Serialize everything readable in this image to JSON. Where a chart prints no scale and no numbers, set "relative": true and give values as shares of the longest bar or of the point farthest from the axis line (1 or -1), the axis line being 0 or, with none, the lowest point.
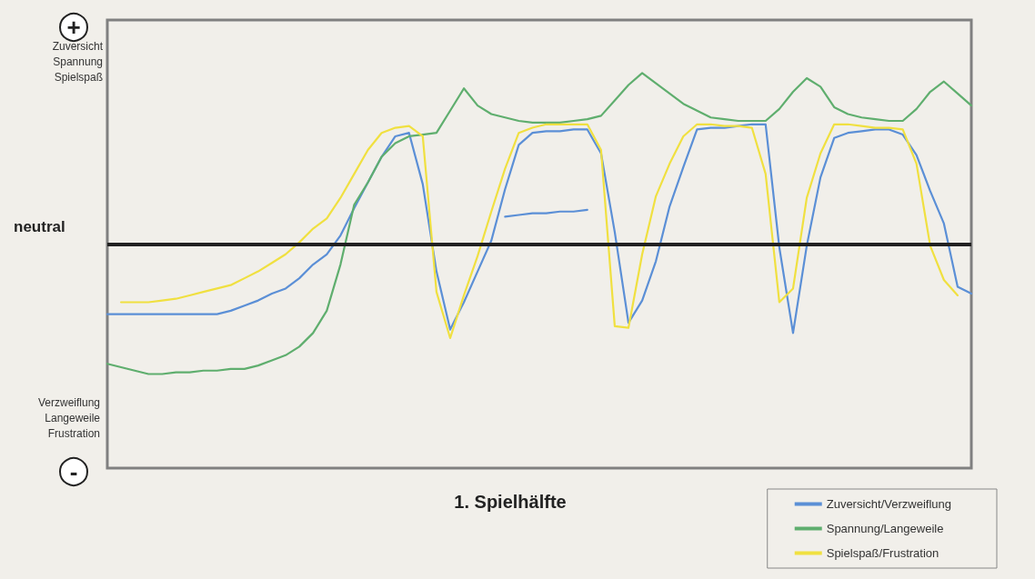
{
  "chart_data": {
    "type": "line",
    "relative": true,
    "annotations": [
      "+",
      "Zuversicht\nSpannung\nSpielspaß",
      "Verzweiflung\nLangeweile\nFrustration",
      "-",
      "1. Spielhälfte"
    ],
    "categories": [
      null,
      null,
      null,
      null,
      null,
      null,
      null,
      null,
      null,
      null,
      null,
      null,
      null,
      null,
      null,
      null,
      null,
      null,
      null,
      null,
      null,
      null,
      null,
      null,
      null,
      null,
      null,
      null,
      null,
      null,
      null,
      null,
      null,
      null,
      null,
      null,
      null,
      null,
      null,
      null,
      null,
      null,
      null,
      null,
      null,
      null,
      null,
      null,
      null,
      null,
      null,
      null,
      null,
      null,
      null,
      null,
      null,
      null,
      null,
      null,
      null,
      null,
      null,
      null
    ],
    "series": [
      {
        "name": "Zuversicht/Verzweiflung",
        "color": "#5b8fd6",
        "values": [
          -0.41,
          -0.41,
          -0.41,
          -0.41,
          -0.41,
          -0.41,
          -0.41,
          -0.41,
          -0.41,
          -0.39,
          -0.36,
          -0.33,
          -0.29,
          -0.26,
          -0.2,
          -0.12,
          -0.06,
          0.05,
          0.21,
          0.36,
          0.51,
          0.63,
          0.65,
          0.35,
          -0.16,
          -0.5,
          -0.34,
          -0.16,
          0.02,
          0.32,
          0.58,
          0.65,
          0.66,
          0.66,
          0.67,
          0.67,
          0.53,
          0.07,
          -0.46,
          -0.33,
          -0.1,
          0.22,
          0.45,
          0.67,
          0.68,
          0.68,
          0.69,
          0.7,
          0.7,
          -0.02,
          -0.52,
          -0.01,
          0.39,
          0.62,
          0.65,
          0.66,
          0.67,
          0.67,
          0.64,
          0.52,
          0.31,
          0.12,
          -0.25,
          -0.29
        ]
      },
      {
        "color": "#5b8fd6",
        "values": [
          null,
          null,
          null,
          null,
          null,
          null,
          null,
          null,
          null,
          null,
          null,
          null,
          null,
          null,
          null,
          null,
          null,
          null,
          null,
          null,
          null,
          null,
          null,
          null,
          null,
          null,
          null,
          null,
          null,
          0.16,
          0.17,
          0.18,
          0.18,
          0.19,
          0.19,
          0.2,
          null,
          null,
          null,
          null,
          null,
          null,
          null,
          null,
          null,
          null,
          null,
          null,
          null,
          null,
          null,
          null,
          null,
          null,
          null,
          null,
          null,
          null,
          null,
          null,
          null,
          null,
          null,
          null
        ]
      },
      {
        "name": "Spannung/Langeweile",
        "color": "#5fae6e",
        "values": [
          -0.7,
          -0.72,
          -0.74,
          -0.76,
          -0.76,
          -0.75,
          -0.75,
          -0.74,
          -0.74,
          -0.73,
          -0.73,
          -0.71,
          -0.68,
          -0.65,
          -0.6,
          -0.52,
          -0.39,
          -0.12,
          0.23,
          0.36,
          0.51,
          0.59,
          0.63,
          0.64,
          0.65,
          0.78,
          0.91,
          0.81,
          0.76,
          0.74,
          0.72,
          0.71,
          0.71,
          0.71,
          0.72,
          0.73,
          0.75,
          0.84,
          0.93,
          1.0,
          0.94,
          0.88,
          0.82,
          0.78,
          0.74,
          0.73,
          0.72,
          0.72,
          0.72,
          0.79,
          0.89,
          0.97,
          0.92,
          0.8,
          0.76,
          0.74,
          0.73,
          0.72,
          0.72,
          0.79,
          0.89,
          0.95,
          0.88,
          0.81
        ]
      },
      {
        "name": "Spielspaß/Frustration",
        "color": "#f0e040",
        "values": [
          null,
          -0.34,
          -0.34,
          -0.34,
          -0.33,
          -0.32,
          -0.3,
          -0.28,
          -0.26,
          -0.24,
          -0.2,
          -0.16,
          -0.11,
          -0.06,
          0.01,
          0.09,
          0.15,
          0.27,
          0.41,
          0.55,
          0.65,
          0.68,
          0.69,
          0.63,
          -0.28,
          -0.55,
          -0.3,
          -0.07,
          0.19,
          0.44,
          0.65,
          0.68,
          0.7,
          0.7,
          0.7,
          0.7,
          0.55,
          -0.48,
          -0.49,
          -0.06,
          0.28,
          0.47,
          0.63,
          0.7,
          0.7,
          0.69,
          0.69,
          0.68,
          0.41,
          -0.34,
          -0.26,
          0.27,
          0.53,
          0.7,
          0.7,
          0.69,
          0.68,
          0.68,
          0.67,
          0.47,
          -0.01,
          -0.21,
          -0.3,
          null
        ]
      }
    ],
    "ref_lines": [
      {
        "axis": "y",
        "value": 0,
        "label": "neutral",
        "color": "#222222",
        "line_style": "solid"
      }
    ],
    "legend": "bottom right",
    "grid": false,
    "marker": "none",
    "line_style": "solid"
  }
}
